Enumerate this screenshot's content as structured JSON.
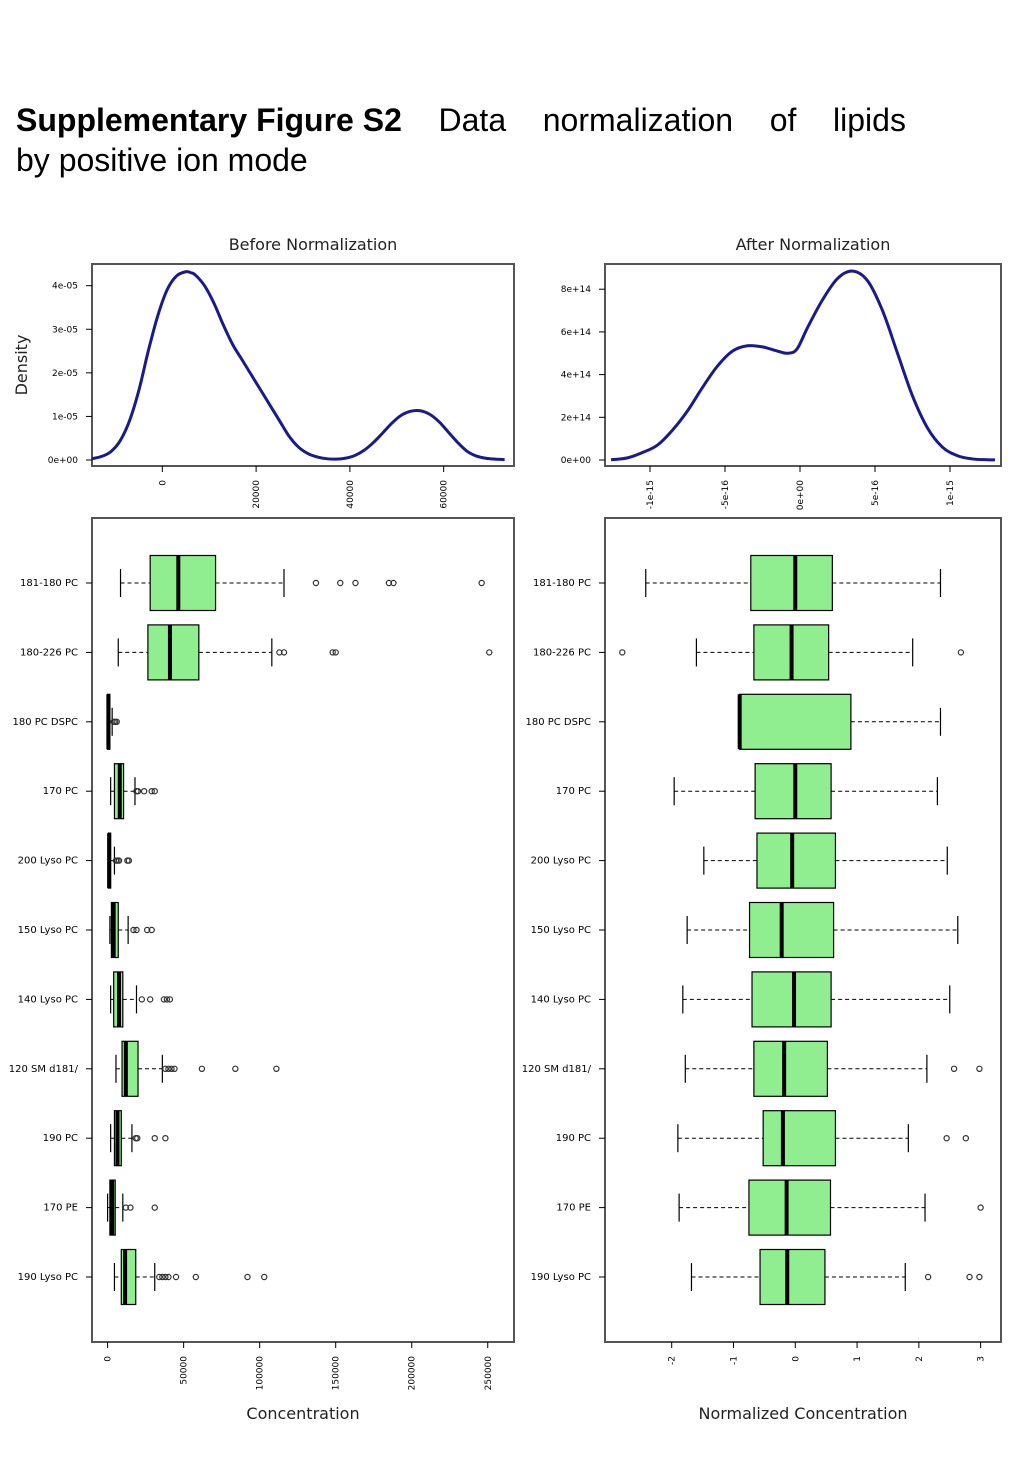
{
  "caption": {
    "bold": "Supplementary Figure S2",
    "words": [
      "Data",
      "normalization",
      "of",
      "lipids"
    ],
    "line2": "by positive ion mode"
  },
  "colors": {
    "density_line": "#1a1a8c",
    "box_fill": "#90ee90",
    "box_stroke": "#000000",
    "frame": "#555555"
  },
  "chart_data": [
    {
      "type": "line",
      "title": "Before Normalization",
      "ylabel": "Density",
      "xlabel": "",
      "xlim": [
        -15000,
        75000
      ],
      "ylim": [
        0,
        4.36e-05
      ],
      "xticks": [
        0,
        20000,
        40000,
        60000
      ],
      "xtick_labels": [
        "0",
        "20000",
        "40000",
        "60000"
      ],
      "yticks": [
        0,
        1e-05,
        2e-05,
        3e-05,
        4e-05
      ],
      "ytick_labels": [
        "0e+00",
        "1e-05",
        "2e-05",
        "3e-05",
        "4e-05"
      ],
      "x": [
        -15000,
        -13000,
        -11000,
        -9000,
        -7000,
        -5000,
        -3000,
        -1000,
        1000,
        3000,
        5000,
        6000,
        7000,
        9000,
        11000,
        13000,
        15000,
        17000,
        19000,
        21000,
        23000,
        25000,
        27000,
        29000,
        31000,
        33000,
        35000,
        37000,
        39000,
        41000,
        43000,
        45000,
        47000,
        49000,
        51000,
        53000,
        55000,
        57000,
        59000,
        61000,
        63000,
        65000,
        67000,
        69000,
        71000,
        73000
      ],
      "y": [
        3e-07,
        8e-07,
        1.9e-06,
        4.4e-06,
        9e-06,
        1.6e-05,
        2.5e-05,
        3.3e-05,
        3.9e-05,
        4.22e-05,
        4.32e-05,
        4.3e-05,
        4.25e-05,
        4e-05,
        3.6e-05,
        3.1e-05,
        2.65e-05,
        2.3e-05,
        1.95e-05,
        1.6e-05,
        1.25e-05,
        9e-06,
        5.5e-06,
        3e-06,
        1.5e-06,
        7e-07,
        3e-07,
        2e-07,
        4e-07,
        1e-06,
        2.2e-06,
        4e-06,
        6.2e-06,
        8.5e-06,
        1.03e-05,
        1.12e-05,
        1.13e-05,
        1.05e-05,
        8.8e-06,
        6.4e-06,
        4e-06,
        2e-06,
        9e-07,
        4e-07,
        2e-07,
        1e-07
      ]
    },
    {
      "type": "line",
      "title": "After Normalization",
      "ylabel": "",
      "xlabel": "",
      "xlim": [
        -1.3e-15,
        1.34e-15
      ],
      "ylim": [
        0,
        890000000000000.0
      ],
      "xticks": [
        -1e-15,
        -5e-16,
        0,
        5e-16,
        1e-15
      ],
      "xtick_labels": [
        "-1e-15",
        "-5e-16",
        "0e+00",
        "5e-16",
        "1e-15"
      ],
      "yticks": [
        0,
        200000000000000.0,
        400000000000000.0,
        600000000000000.0,
        800000000000000.0
      ],
      "ytick_labels": [
        "0e+00",
        "2e+14",
        "4e+14",
        "6e+14",
        "8e+14"
      ],
      "x": [
        -1.26e-15,
        -1.15e-15,
        -1.05e-15,
        -9.5e-16,
        -8.5e-16,
        -7.5e-16,
        -6.5e-16,
        -5.5e-16,
        -4.5e-16,
        -3.5e-16,
        -2.5e-16,
        -1.5e-16,
        -8e-17,
        -2e-17,
        5e-17,
        1.5e-16,
        2.5e-16,
        3.5e-16,
        4.5e-16,
        5.5e-16,
        6.5e-16,
        7.5e-16,
        8.5e-16,
        9.5e-16,
        1.05e-15,
        1.15e-15,
        1.25e-15,
        1.3e-15
      ],
      "y": [
        1000000000000.0,
        10000000000000.0,
        35000000000000.0,
        70000000000000.0,
        140000000000000.0,
        230000000000000.0,
        340000000000000.0,
        440000000000000.0,
        510000000000000.0,
        535000000000000.0,
        530000000000000.0,
        510000000000000.0,
        500000000000000.0,
        520000000000000.0,
        620000000000000.0,
        750000000000000.0,
        850000000000000.0,
        885000000000000.0,
        840000000000000.0,
        700000000000000.0,
        500000000000000.0,
        300000000000000.0,
        150000000000000.0,
        60000000000000.0,
        20000000000000.0,
        5000000000000.0,
        1000000000000.0,
        500000000000.0
      ]
    },
    {
      "type": "box",
      "title": "",
      "xlabel": "Concentration",
      "xlim": [
        -5000,
        262000
      ],
      "xticks": [
        0,
        50000,
        100000,
        150000,
        200000,
        250000
      ],
      "xtick_labels": [
        "0",
        "50000",
        "100000",
        "150000",
        "200000",
        "250000"
      ],
      "categories": [
        "181-180 PC",
        "180-226 PC",
        "180 PC DSPC",
        "170 PC",
        "200 Lyso PC",
        "150 Lyso PC",
        "140 Lyso PC",
        "120 SM d181/",
        "190 PC",
        "170 PE",
        "190 Lyso PC"
      ],
      "boxes": [
        {
          "wmin": 8500,
          "q1": 28000,
          "median": 46500,
          "q3": 71000,
          "wmax": 116000,
          "outliers": [
            137000,
            153000,
            163000,
            185000,
            188000,
            246000
          ]
        },
        {
          "wmin": 7000,
          "q1": 26500,
          "median": 41000,
          "q3": 60000,
          "wmax": 108000,
          "outliers": [
            113000,
            116000,
            148000,
            150000,
            251000
          ]
        },
        {
          "wmin": 0,
          "q1": 0,
          "median": 500,
          "q3": 1500,
          "wmax": 3000,
          "outliers": [
            4000,
            5000,
            6000
          ]
        },
        {
          "wmin": 2000,
          "q1": 4500,
          "median": 8000,
          "q3": 10500,
          "wmax": 18000,
          "outliers": [
            19000,
            20000,
            24000,
            29000,
            31000
          ]
        },
        {
          "wmin": 500,
          "q1": 500,
          "median": 1000,
          "q3": 2000,
          "wmax": 4500,
          "outliers": [
            5500,
            6500,
            7500,
            13000,
            14000
          ]
        },
        {
          "wmin": 1500,
          "q1": 2500,
          "median": 4000,
          "q3": 7000,
          "wmax": 13500,
          "outliers": [
            17000,
            19000,
            26000,
            29000
          ]
        },
        {
          "wmin": 2000,
          "q1": 4000,
          "median": 7500,
          "q3": 10000,
          "wmax": 19000,
          "outliers": [
            22500,
            28000,
            37000,
            39000,
            41000
          ]
        },
        {
          "wmin": 5500,
          "q1": 9500,
          "median": 12000,
          "q3": 20000,
          "wmax": 36000,
          "outliers": [
            38000,
            40000,
            42000,
            44000,
            62000,
            84000,
            111000
          ]
        },
        {
          "wmin": 2000,
          "q1": 4500,
          "median": 6500,
          "q3": 9000,
          "wmax": 16000,
          "outliers": [
            18500,
            19500,
            31000,
            38000
          ]
        },
        {
          "wmin": 0,
          "q1": 1500,
          "median": 3000,
          "q3": 5000,
          "wmax": 10000,
          "outliers": [
            12000,
            15000,
            31000
          ]
        },
        {
          "wmin": 4500,
          "q1": 9000,
          "median": 11500,
          "q3": 18500,
          "wmax": 31000,
          "outliers": [
            34000,
            36000,
            38000,
            40000,
            45000,
            58000,
            92000,
            103000
          ]
        }
      ]
    },
    {
      "type": "box",
      "title": "",
      "xlabel": "Normalized Concentration",
      "xlim": [
        -2.95,
        3.2
      ],
      "xticks": [
        -2,
        -1,
        0,
        1,
        2,
        3
      ],
      "xtick_labels": [
        "-2",
        "-1",
        "0",
        "1",
        "2",
        "3"
      ],
      "categories": [
        "181-180 PC",
        "180-226 PC",
        "180 PC DSPC",
        "170 PC",
        "200 Lyso PC",
        "150 Lyso PC",
        "140 Lyso PC",
        "120 SM d181/",
        "190 PC",
        "170 PE",
        "190 Lyso PC"
      ],
      "boxes": [
        {
          "wmin": -2.42,
          "q1": -0.72,
          "median": 0.0,
          "q3": 0.6,
          "wmax": 2.35,
          "outliers": []
        },
        {
          "wmin": -1.6,
          "q1": -0.67,
          "median": -0.06,
          "q3": 0.54,
          "wmax": 1.9,
          "outliers": [
            -2.8,
            2.68
          ]
        },
        {
          "wmin": -0.9,
          "q1": -0.9,
          "median": -0.9,
          "q3": 0.9,
          "wmax": 2.35,
          "outliers": []
        },
        {
          "wmin": -1.96,
          "q1": -0.65,
          "median": 0.0,
          "q3": 0.58,
          "wmax": 2.3,
          "outliers": []
        },
        {
          "wmin": -1.48,
          "q1": -0.62,
          "median": -0.05,
          "q3": 0.65,
          "wmax": 2.46,
          "outliers": []
        },
        {
          "wmin": -1.75,
          "q1": -0.74,
          "median": -0.22,
          "q3": 0.62,
          "wmax": 2.63,
          "outliers": []
        },
        {
          "wmin": -1.82,
          "q1": -0.7,
          "median": -0.02,
          "q3": 0.58,
          "wmax": 2.5,
          "outliers": []
        },
        {
          "wmin": -1.78,
          "q1": -0.67,
          "median": -0.18,
          "q3": 0.52,
          "wmax": 2.13,
          "outliers": [
            2.57,
            2.98
          ]
        },
        {
          "wmin": -1.9,
          "q1": -0.52,
          "median": -0.2,
          "q3": 0.65,
          "wmax": 1.83,
          "outliers": [
            2.45,
            2.76
          ]
        },
        {
          "wmin": -1.88,
          "q1": -0.75,
          "median": -0.14,
          "q3": 0.57,
          "wmax": 2.1,
          "outliers": [
            3.0
          ]
        },
        {
          "wmin": -1.68,
          "q1": -0.57,
          "median": -0.13,
          "q3": 0.48,
          "wmax": 1.78,
          "outliers": [
            2.15,
            2.82,
            2.98
          ]
        }
      ]
    }
  ]
}
